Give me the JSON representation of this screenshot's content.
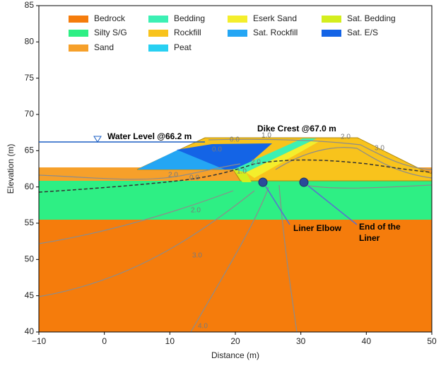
{
  "chart_data": {
    "type": "section",
    "x_label": "Distance (m)",
    "y_label": "Elevation (m)",
    "xlim": [
      -10,
      50
    ],
    "ylim": [
      40,
      85
    ],
    "xticks": [
      {
        "value": -10,
        "label": "−10"
      },
      0,
      10,
      20,
      30,
      40,
      50
    ],
    "yticks": [
      40,
      45,
      50,
      55,
      60,
      65,
      70,
      75,
      80,
      85
    ],
    "legend": [
      {
        "name": "Bedrock",
        "color": "#f57c0c"
      },
      {
        "name": "Bedding",
        "color": "#3cf0b4"
      },
      {
        "name": "Eserk Sand",
        "color": "#f4ee2c"
      },
      {
        "name": "Sat. Bedding",
        "color": "#d4ee1e"
      },
      {
        "name": "Silty S/G",
        "color": "#2eef84"
      },
      {
        "name": "Rockfill",
        "color": "#f8c31c"
      },
      {
        "name": "Sat. Rockfill",
        "color": "#24a6f4"
      },
      {
        "name": "Sat. E/S",
        "color": "#1464e6"
      },
      {
        "name": "Sand",
        "color": "#f6a02a"
      },
      {
        "name": "Peat",
        "color": "#28d0f2"
      }
    ],
    "water_level": {
      "text": "Water Level @66.2 m",
      "value": 66.2
    },
    "dike_crest": {
      "text": "Dike Crest @67.0 m",
      "value": 67.0
    },
    "liner_elbow": "Liner Elbow",
    "liner_end": [
      "End of  the",
      "Liner"
    ],
    "contour_labels": [
      "0.0",
      "1.0",
      "2.0",
      "3.0",
      "0.0",
      "1.0",
      "2.0",
      "0.0",
      "2.0",
      "2.0",
      "3.0",
      "4.0"
    ]
  }
}
